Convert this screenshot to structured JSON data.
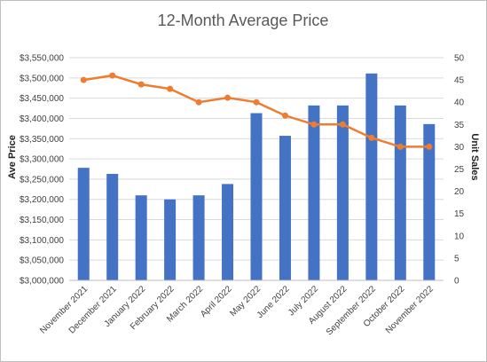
{
  "chart_data": {
    "type": "bar+line",
    "title": "12-Month Average Price",
    "categories": [
      "November 2021",
      "December 2021",
      "January 2022",
      "February 2022",
      "March 2022",
      "April 2022",
      "May 2022",
      "June 2022",
      "July 2022",
      "August 2022",
      "September 2022",
      "October 2022",
      "November 2022"
    ],
    "series": [
      {
        "kind": "bar",
        "axis": "left",
        "values": [
          3278000,
          3263000,
          3210000,
          3200000,
          3210000,
          3238000,
          3413000,
          3357000,
          3432000,
          3432000,
          3511000,
          3432000,
          3386000
        ],
        "color": "#4472c4"
      },
      {
        "kind": "line",
        "axis": "right",
        "values": [
          45,
          46,
          44,
          43,
          40,
          41,
          40,
          37,
          35,
          35,
          32,
          30,
          30
        ],
        "color": "#ed7d31"
      }
    ],
    "y_left": {
      "label": "Ave Price",
      "min": 3000000,
      "max": 3550000,
      "step": 50000,
      "ticks": [
        "$3,000,000",
        "$3,050,000",
        "$3,100,000",
        "$3,150,000",
        "$3,200,000",
        "$3,250,000",
        "$3,300,000",
        "$3,350,000",
        "$3,400,000",
        "$3,450,000",
        "$3,500,000",
        "$3,550,000"
      ]
    },
    "y_right": {
      "label": "Unit Sales",
      "min": 0,
      "max": 50,
      "step": 5,
      "ticks": [
        "0",
        "5",
        "10",
        "15",
        "20",
        "25",
        "30",
        "35",
        "40",
        "45",
        "50"
      ]
    },
    "grid": true,
    "legend": "none"
  }
}
